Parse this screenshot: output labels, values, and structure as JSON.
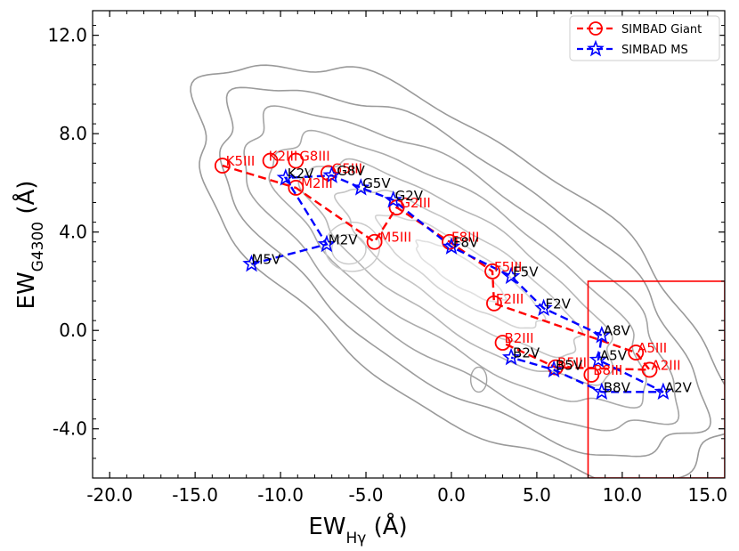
{
  "chart_data": {
    "type": "scatter",
    "title": "",
    "xlabel": {
      "main": "EW",
      "sub": "Hγ",
      "unit": " (Å)"
    },
    "ylabel": {
      "main": "EW",
      "sub": "G4300",
      "unit": " (Å)"
    },
    "xlim": [
      -21,
      16
    ],
    "ylim": [
      -6,
      13
    ],
    "x_ticks": [
      -20,
      -15,
      -10,
      -5,
      0,
      5,
      10,
      15
    ],
    "x_tick_labels": [
      "-20.0",
      "-15.0",
      "-10.0",
      "-5.0",
      "0.0",
      "5.0",
      "10.0",
      "15.0"
    ],
    "y_ticks": [
      -4,
      0,
      4,
      8,
      12
    ],
    "y_tick_labels": [
      "-4.0",
      "0.0",
      "4.0",
      "8.0",
      "12.0"
    ],
    "legend_position": "top-right",
    "box": {
      "x0": 8,
      "x1": 16,
      "y0": -6,
      "y1": 2
    },
    "series": [
      {
        "name": "SIMBAD Giant",
        "color": "#ff0000",
        "marker": "circle",
        "labels": [
          "K5III",
          "K2III",
          "G8III",
          "G5III",
          "M2III",
          "M5III",
          "G2III",
          "F8III",
          "F5III",
          "F2III",
          "B2III",
          "A5III",
          "A2III",
          "B5III",
          "B8III"
        ],
        "x": [
          -13.4,
          -10.6,
          -9.1,
          -7.2,
          -9.1,
          -4.5,
          -3.2,
          -0.1,
          2.4,
          2.5,
          3.0,
          10.8,
          11.6,
          6.1,
          8.2
        ],
        "y": [
          6.7,
          6.9,
          6.9,
          6.4,
          5.8,
          3.6,
          5.0,
          3.6,
          2.4,
          1.1,
          -0.5,
          -0.9,
          -1.6,
          -1.5,
          -1.8
        ],
        "label_dx": [
          0.2,
          -0.1,
          0.2,
          0.2,
          0.3,
          0.3,
          0.2,
          0.1,
          0.1,
          0.1,
          0.1,
          0.1,
          0.1,
          0.1,
          0.1
        ],
        "label_dy": [
          0.0,
          0.0,
          0.0,
          0.0,
          0.0,
          0.0,
          0.0,
          0.0,
          0.0,
          0.0,
          0.0,
          0.0,
          0.0,
          0.0,
          0.0
        ]
      },
      {
        "name": "SIMBAD MS",
        "color": "#0000ff",
        "marker": "star",
        "labels": [
          "M5V",
          "M2V",
          "K2V",
          "G8V",
          "G5V",
          "G2V",
          "F8V",
          "F5V",
          "F2V",
          "A8V",
          "A5V",
          "A2V",
          "B8V",
          "B5V",
          "B2V"
        ],
        "x": [
          -11.7,
          -7.3,
          -9.7,
          -7.0,
          -5.3,
          -3.4,
          0.0,
          3.5,
          5.4,
          8.8,
          8.6,
          12.4,
          8.8,
          6.0,
          3.5
        ],
        "y": [
          2.7,
          3.5,
          6.2,
          6.3,
          5.8,
          5.3,
          3.4,
          2.2,
          0.9,
          -0.2,
          -1.2,
          -2.5,
          -2.5,
          -1.6,
          -1.1
        ],
        "label_dx": [
          0.0,
          0.1,
          0.1,
          0.3,
          0.1,
          0.1,
          0.1,
          0.1,
          0.1,
          0.1,
          0.1,
          0.1,
          0.1,
          0.1,
          0.1
        ],
        "label_dy": [
          0.0,
          0.0,
          0.0,
          0.0,
          0.0,
          0.0,
          0.0,
          0.0,
          0.0,
          0.0,
          0.0,
          0.0,
          0.0,
          0.0,
          0.0
        ]
      }
    ],
    "giant_path": [
      "K5III",
      "M2III",
      "M5III",
      "G2III",
      "F8III",
      "F5III",
      "F2III",
      "A5III",
      "A2III",
      "B5III",
      "B2III"
    ],
    "ms_path": [
      "M5V",
      "M2V",
      "K2V",
      "G8V",
      "G5V",
      "G2V",
      "F8V",
      "F5V",
      "F2V",
      "A8V",
      "A5V",
      "A2V",
      "B8V",
      "B5V",
      "B2V"
    ],
    "contour_color": "#999999"
  }
}
